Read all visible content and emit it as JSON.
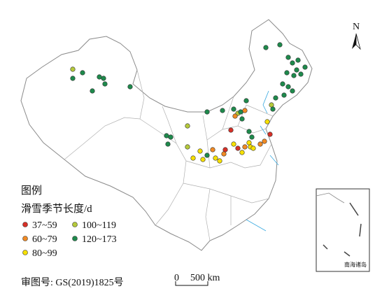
{
  "north_arrow": "N",
  "legend": {
    "title": "图例",
    "subtitle": "滑雪季节长度/d",
    "items": [
      "37~59",
      "60~79",
      "80~99",
      "100~119",
      "120~173"
    ]
  },
  "approval_number": "审图号: GS(2019)1825号",
  "scale_bar": {
    "start": "0",
    "end": "500 km"
  },
  "inset": "南海诸岛"
}
